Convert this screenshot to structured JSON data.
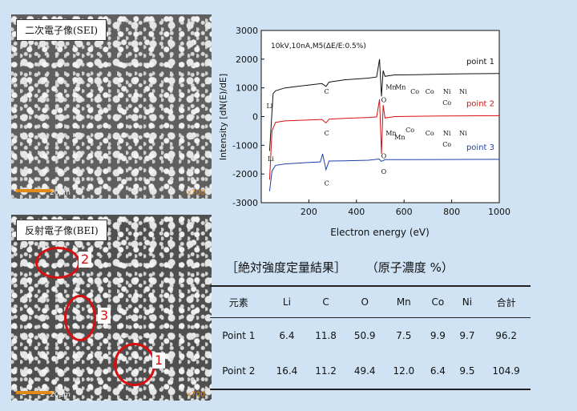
{
  "micrographs": {
    "sei": {
      "label": "二次電子像(SEI)",
      "scale": "20μm",
      "mag": "x700"
    },
    "bei": {
      "label": "反射電子像(BEI)",
      "scale": "20μm",
      "mag": "x700",
      "regions": [
        "2",
        "3",
        "1"
      ]
    }
  },
  "chart_data": {
    "type": "line",
    "title": "10kV,10nA,M5(ΔE/E:0.5%)",
    "xlabel": "Electron energy (eV)",
    "ylabel": "Intensity [dN(E)/dE]",
    "xlim": [
      0,
      1000
    ],
    "ylim": [
      -3000,
      3000
    ],
    "x_ticks": [
      "200",
      "400",
      "600",
      "800",
      "1000"
    ],
    "y_ticks": [
      "3000",
      "2000",
      "1000",
      "0",
      "-1000",
      "-2000",
      "-3000"
    ],
    "series": [
      {
        "name": "point 1",
        "color": "#111111",
        "points": [
          [
            35,
            -1200
          ],
          [
            50,
            800
          ],
          [
            60,
            900
          ],
          [
            100,
            1000
          ],
          [
            200,
            1100
          ],
          [
            255,
            1150
          ],
          [
            272,
            1050
          ],
          [
            285,
            1200
          ],
          [
            350,
            1280
          ],
          [
            450,
            1340
          ],
          [
            485,
            1380
          ],
          [
            497,
            2000
          ],
          [
            505,
            700
          ],
          [
            512,
            1600
          ],
          [
            520,
            1400
          ],
          [
            560,
            1450
          ],
          [
            650,
            1460
          ],
          [
            760,
            1480
          ],
          [
            850,
            1490
          ],
          [
            1000,
            1500
          ]
        ],
        "peaks": [
          {
            "text": "Li",
            "x": 35,
            "y": 300
          },
          {
            "text": "C",
            "x": 275,
            "y": 800
          },
          {
            "text": "Mn",
            "x": 545,
            "y": 950
          },
          {
            "text": "Mn",
            "x": 585,
            "y": 950
          },
          {
            "text": "Co",
            "x": 645,
            "y": 800
          },
          {
            "text": "Co",
            "x": 708,
            "y": 800
          },
          {
            "text": "Ni",
            "x": 780,
            "y": 800
          },
          {
            "text": "Co",
            "x": 780,
            "y": 400
          },
          {
            "text": "Ni",
            "x": 848,
            "y": 800
          },
          {
            "text": "O",
            "x": 515,
            "y": 500
          }
        ]
      },
      {
        "name": "point 2",
        "color": "#d61010",
        "points": [
          [
            35,
            -2200
          ],
          [
            45,
            -500
          ],
          [
            60,
            -200
          ],
          [
            100,
            -150
          ],
          [
            200,
            -120
          ],
          [
            255,
            -100
          ],
          [
            272,
            -220
          ],
          [
            285,
            -90
          ],
          [
            350,
            -60
          ],
          [
            450,
            -30
          ],
          [
            485,
            -10
          ],
          [
            497,
            600
          ],
          [
            505,
            -1300
          ],
          [
            512,
            400
          ],
          [
            520,
            -50
          ],
          [
            560,
            0
          ],
          [
            650,
            10
          ],
          [
            760,
            20
          ],
          [
            850,
            25
          ],
          [
            1000,
            30
          ]
        ],
        "peaks": [
          {
            "text": "Li",
            "x": 40,
            "y": -1550
          },
          {
            "text": "C",
            "x": 275,
            "y": -650
          },
          {
            "text": "Mn",
            "x": 545,
            "y": -650
          },
          {
            "text": "Mn",
            "x": 582,
            "y": -800
          },
          {
            "text": "Co",
            "x": 625,
            "y": -550
          },
          {
            "text": "Co",
            "x": 708,
            "y": -650
          },
          {
            "text": "Ni",
            "x": 780,
            "y": -650
          },
          {
            "text": "Co",
            "x": 780,
            "y": -1050
          },
          {
            "text": "Ni",
            "x": 848,
            "y": -650
          },
          {
            "text": "O",
            "x": 515,
            "y": -1450
          }
        ]
      },
      {
        "name": "point 3",
        "color": "#1f3fa8",
        "points": [
          [
            35,
            -2600
          ],
          [
            45,
            -1900
          ],
          [
            60,
            -1700
          ],
          [
            100,
            -1650
          ],
          [
            200,
            -1600
          ],
          [
            248,
            -1580
          ],
          [
            258,
            -1300
          ],
          [
            272,
            -1850
          ],
          [
            285,
            -1550
          ],
          [
            350,
            -1540
          ],
          [
            450,
            -1520
          ],
          [
            495,
            -1480
          ],
          [
            505,
            -1560
          ],
          [
            520,
            -1500
          ],
          [
            600,
            -1500
          ],
          [
            760,
            -1495
          ],
          [
            850,
            -1492
          ],
          [
            1000,
            -1490
          ]
        ],
        "peaks": [
          {
            "text": "C",
            "x": 275,
            "y": -2400
          },
          {
            "text": "O",
            "x": 515,
            "y": -2000
          }
        ]
      }
    ]
  },
  "results": {
    "title": "［絶対強度定量結果］",
    "subtitle": "（原子濃度 %）",
    "headers": [
      "元素",
      "Li",
      "C",
      "O",
      "Mn",
      "Co",
      "Ni",
      "合計"
    ],
    "rows": [
      [
        "Point 1",
        "6.4",
        "11.8",
        "50.9",
        "7.5",
        "9.9",
        "9.7",
        "96.2"
      ],
      [
        "Point 2",
        "16.4",
        "11.2",
        "49.4",
        "12.0",
        "6.4",
        "9.5",
        "104.9"
      ]
    ]
  }
}
